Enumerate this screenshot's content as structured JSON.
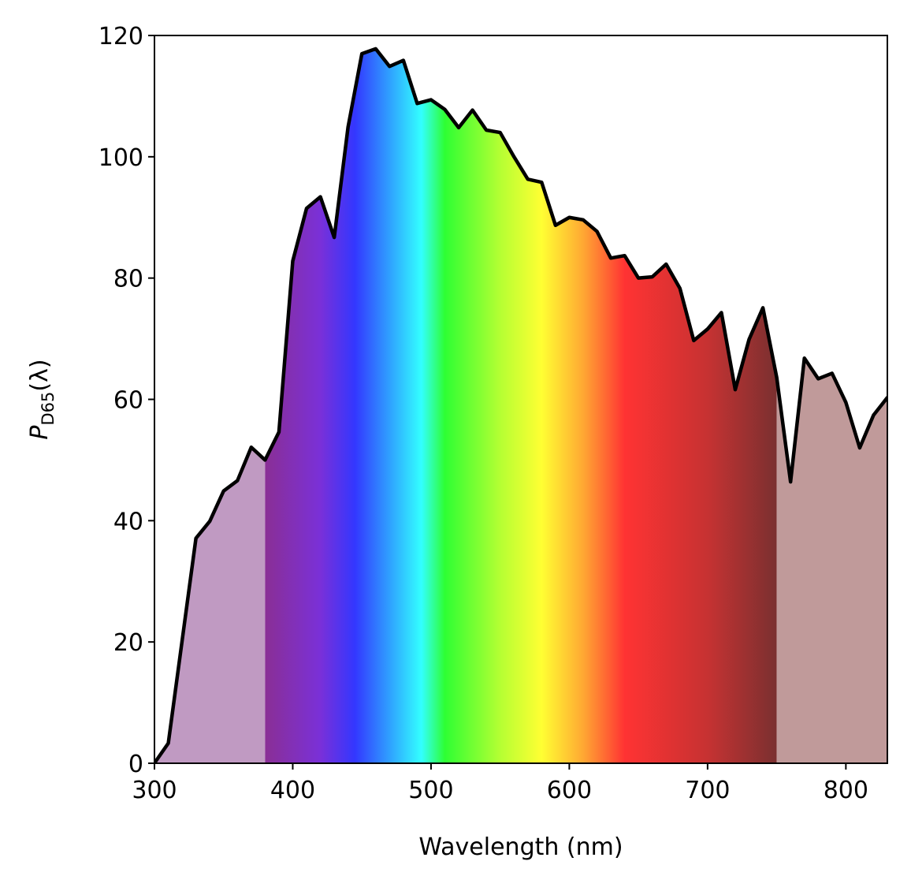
{
  "chart_data": {
    "type": "area",
    "title": "",
    "xlabel": "Wavelength (nm)",
    "ylabel": {
      "symbol": "P",
      "subscript": "D65",
      "suffix": "(λ)"
    },
    "xlim": [
      300,
      830
    ],
    "ylim": [
      0,
      120
    ],
    "xticks": [
      300,
      400,
      500,
      600,
      700,
      800
    ],
    "yticks": [
      0,
      20,
      40,
      60,
      80,
      100,
      120
    ],
    "grid": false,
    "visible_range": [
      380,
      750
    ],
    "series": [
      {
        "x": [
          300,
          310,
          320,
          330,
          340,
          350,
          360,
          370,
          380,
          390,
          400,
          410,
          420,
          430,
          440,
          450,
          460,
          470,
          480,
          490,
          500,
          510,
          520,
          530,
          540,
          550,
          560,
          570,
          580,
          590,
          600,
          610,
          620,
          630,
          640,
          650,
          660,
          670,
          680,
          690,
          700,
          710,
          720,
          730,
          740,
          750,
          760,
          770,
          780,
          790,
          800,
          810,
          820,
          830
        ],
        "y": [
          0.03,
          3.3,
          20.2,
          37.1,
          39.9,
          44.9,
          46.6,
          52.1,
          50.0,
          54.6,
          82.8,
          91.5,
          93.4,
          86.7,
          104.9,
          117.0,
          117.8,
          114.9,
          115.9,
          108.8,
          109.4,
          107.8,
          104.8,
          107.7,
          104.4,
          104.0,
          100.0,
          96.3,
          95.8,
          88.7,
          90.0,
          89.6,
          87.7,
          83.3,
          83.7,
          80.0,
          80.2,
          82.3,
          78.3,
          69.7,
          71.6,
          74.3,
          61.6,
          69.9,
          75.1,
          63.6,
          46.4,
          66.8,
          63.4,
          64.3,
          59.5,
          52.0,
          57.4,
          60.3
        ],
        "line_color": "#000000"
      }
    ],
    "colors": {
      "uv_fill": "#c09ac2",
      "ir_fill": "#c09a9a",
      "spectrum_stops": [
        {
          "nm": 380,
          "color": "#8a2f95"
        },
        {
          "nm": 420,
          "color": "#7a30d8"
        },
        {
          "nm": 445,
          "color": "#3337ff"
        },
        {
          "nm": 470,
          "color": "#2fa0ff"
        },
        {
          "nm": 493,
          "color": "#33ffff"
        },
        {
          "nm": 510,
          "color": "#2eff33"
        },
        {
          "nm": 550,
          "color": "#b5ff33"
        },
        {
          "nm": 580,
          "color": "#ffff33"
        },
        {
          "nm": 610,
          "color": "#ffa833"
        },
        {
          "nm": 640,
          "color": "#ff3333"
        },
        {
          "nm": 700,
          "color": "#c63232"
        },
        {
          "nm": 750,
          "color": "#7a3030"
        }
      ]
    }
  }
}
